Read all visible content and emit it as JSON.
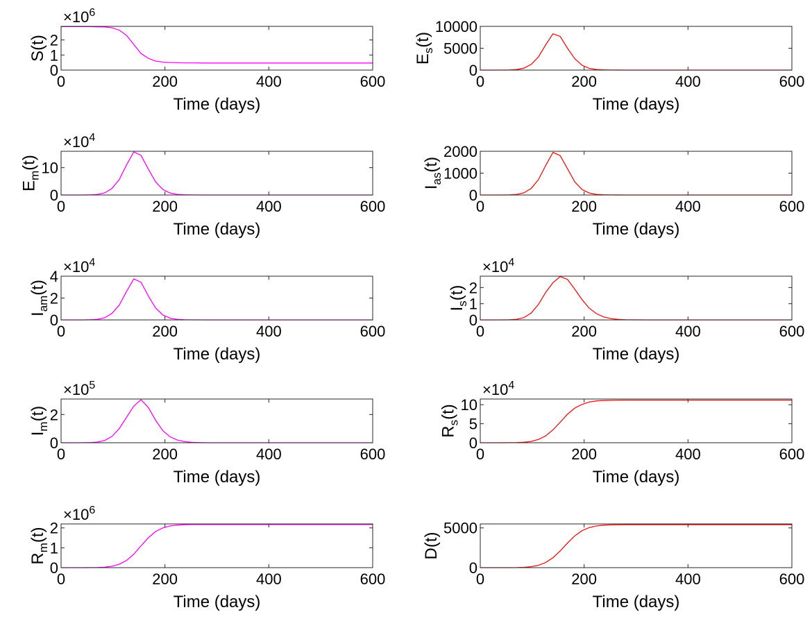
{
  "chart_data": [
    {
      "type": "line",
      "ylabel": "S(t)",
      "ylabel_base": "S",
      "ylabel_sub": "",
      "xlabel": "Time (days)",
      "exponent": "6",
      "xlim": [
        0,
        600
      ],
      "ylim": [
        0,
        2.9
      ],
      "xticks": [
        0,
        200,
        400,
        600
      ],
      "yticks": [
        0,
        1,
        2
      ],
      "color": "#ff00ff",
      "x": [
        0,
        14,
        28,
        42,
        56,
        70,
        84,
        98,
        112,
        126,
        140,
        154,
        168,
        182,
        196,
        210,
        224,
        238,
        252,
        280,
        320,
        400,
        500,
        600
      ],
      "y": [
        2.88,
        2.88,
        2.88,
        2.88,
        2.88,
        2.87,
        2.86,
        2.81,
        2.65,
        2.3,
        1.7,
        1.1,
        0.78,
        0.6,
        0.53,
        0.5,
        0.49,
        0.48,
        0.48,
        0.47,
        0.47,
        0.47,
        0.47,
        0.47
      ]
    },
    {
      "type": "line",
      "ylabel": "Es(t)",
      "ylabel_base": "E",
      "ylabel_sub": "s",
      "xlabel": "Time (days)",
      "exponent": "",
      "xlim": [
        0,
        600
      ],
      "ylim": [
        0,
        10000
      ],
      "xticks": [
        0,
        200,
        400,
        600
      ],
      "yticks": [
        0,
        5000,
        10000
      ],
      "color": "#ee1111",
      "x": [
        0,
        14,
        28,
        42,
        56,
        70,
        84,
        98,
        112,
        126,
        140,
        154,
        168,
        182,
        196,
        210,
        224,
        238,
        252,
        280,
        320,
        400,
        500,
        600
      ],
      "y": [
        0,
        0,
        0,
        5,
        30,
        120,
        450,
        1300,
        3000,
        5800,
        8300,
        7700,
        5000,
        2600,
        1100,
        400,
        130,
        40,
        10,
        0,
        0,
        0,
        0,
        0
      ]
    },
    {
      "type": "line",
      "ylabel": "Em(t)",
      "ylabel_base": "E",
      "ylabel_sub": "m",
      "xlabel": "Time (days)",
      "exponent": "4",
      "xlim": [
        0,
        600
      ],
      "ylim": [
        0,
        16
      ],
      "xticks": [
        0,
        200,
        400,
        600
      ],
      "yticks": [
        0,
        10
      ],
      "color": "#ff00ff",
      "x": [
        0,
        14,
        28,
        42,
        56,
        70,
        84,
        98,
        112,
        126,
        140,
        154,
        168,
        182,
        196,
        210,
        224,
        238,
        252,
        280,
        320,
        400,
        500,
        600
      ],
      "y": [
        0,
        0,
        0,
        0.01,
        0.06,
        0.22,
        0.8,
        2.4,
        5.6,
        11,
        15.8,
        14.5,
        9.5,
        4.8,
        2.0,
        0.7,
        0.22,
        0.07,
        0.02,
        0,
        0,
        0,
        0,
        0
      ]
    },
    {
      "type": "line",
      "ylabel": "Ias(t)",
      "ylabel_base": "I",
      "ylabel_sub": "as",
      "xlabel": "Time (days)",
      "exponent": "",
      "xlim": [
        0,
        600
      ],
      "ylim": [
        0,
        2000
      ],
      "xticks": [
        0,
        200,
        400,
        600
      ],
      "yticks": [
        0,
        1000,
        2000
      ],
      "color": "#ee1111",
      "x": [
        0,
        14,
        28,
        42,
        56,
        70,
        84,
        98,
        112,
        126,
        140,
        154,
        168,
        182,
        196,
        210,
        224,
        238,
        252,
        280,
        320,
        400,
        500,
        600
      ],
      "y": [
        0,
        0,
        0,
        1,
        7,
        28,
        100,
        300,
        700,
        1350,
        1950,
        1800,
        1200,
        600,
        250,
        90,
        30,
        9,
        2,
        0,
        0,
        0,
        0,
        0
      ]
    },
    {
      "type": "line",
      "ylabel": "Iam(t)",
      "ylabel_base": "I",
      "ylabel_sub": "am",
      "xlabel": "Time (days)",
      "exponent": "4",
      "xlim": [
        0,
        600
      ],
      "ylim": [
        0,
        4
      ],
      "xticks": [
        0,
        200,
        400,
        600
      ],
      "yticks": [
        0,
        2,
        4
      ],
      "color": "#ff00ff",
      "x": [
        0,
        14,
        28,
        42,
        56,
        70,
        84,
        98,
        112,
        126,
        140,
        154,
        168,
        182,
        196,
        210,
        224,
        238,
        252,
        280,
        320,
        400,
        500,
        600
      ],
      "y": [
        0,
        0,
        0,
        0.003,
        0.015,
        0.06,
        0.2,
        0.6,
        1.35,
        2.6,
        3.75,
        3.45,
        2.2,
        1.1,
        0.45,
        0.16,
        0.05,
        0.015,
        0.004,
        0,
        0,
        0,
        0,
        0
      ]
    },
    {
      "type": "line",
      "ylabel": "Is(t)",
      "ylabel_base": "I",
      "ylabel_sub": "s",
      "xlabel": "Time (days)",
      "exponent": "4",
      "xlim": [
        0,
        600
      ],
      "ylim": [
        0,
        2.7
      ],
      "xticks": [
        0,
        200,
        400,
        600
      ],
      "yticks": [
        0,
        1,
        2
      ],
      "color": "#ee1111",
      "x": [
        0,
        14,
        28,
        42,
        56,
        70,
        84,
        98,
        112,
        126,
        140,
        154,
        168,
        182,
        196,
        210,
        224,
        238,
        252,
        266,
        280,
        320,
        400,
        500,
        600
      ],
      "y": [
        0,
        0,
        0,
        0.002,
        0.01,
        0.04,
        0.14,
        0.42,
        0.95,
        1.7,
        2.3,
        2.68,
        2.5,
        1.9,
        1.25,
        0.72,
        0.38,
        0.18,
        0.08,
        0.03,
        0.01,
        0,
        0,
        0,
        0
      ]
    },
    {
      "type": "line",
      "ylabel": "Im(t)",
      "ylabel_base": "I",
      "ylabel_sub": "m",
      "xlabel": "Time (days)",
      "exponent": "5",
      "xlim": [
        0,
        600
      ],
      "ylim": [
        0,
        3.1
      ],
      "xticks": [
        0,
        200,
        400,
        600
      ],
      "yticks": [
        0,
        2
      ],
      "color": "#ff00ff",
      "x": [
        0,
        14,
        28,
        42,
        56,
        70,
        84,
        98,
        112,
        126,
        140,
        154,
        168,
        182,
        196,
        210,
        224,
        238,
        252,
        266,
        280,
        320,
        400,
        500,
        600
      ],
      "y": [
        0,
        0,
        0,
        0.003,
        0.012,
        0.05,
        0.16,
        0.45,
        1.0,
        1.8,
        2.6,
        3.05,
        2.5,
        1.6,
        0.85,
        0.42,
        0.19,
        0.08,
        0.03,
        0.01,
        0,
        0,
        0,
        0,
        0
      ]
    },
    {
      "type": "line",
      "ylabel": "Rs(t)",
      "ylabel_base": "R",
      "ylabel_sub": "s",
      "xlabel": "Time (days)",
      "exponent": "4",
      "xlim": [
        0,
        600
      ],
      "ylim": [
        0,
        11.5
      ],
      "xticks": [
        0,
        200,
        400,
        600
      ],
      "yticks": [
        0,
        5,
        10
      ],
      "color": "#ee1111",
      "x": [
        0,
        14,
        28,
        42,
        56,
        70,
        84,
        98,
        112,
        126,
        140,
        154,
        168,
        182,
        196,
        210,
        224,
        238,
        252,
        280,
        320,
        400,
        500,
        600
      ],
      "y": [
        0,
        0,
        0,
        0,
        0.01,
        0.04,
        0.12,
        0.35,
        0.85,
        1.8,
        3.4,
        5.4,
        7.5,
        9.1,
        10.1,
        10.7,
        11.0,
        11.1,
        11.15,
        11.2,
        11.2,
        11.2,
        11.2,
        11.2
      ]
    },
    {
      "type": "line",
      "ylabel": "Rm(t)",
      "ylabel_base": "R",
      "ylabel_sub": "m",
      "xlabel": "Time (days)",
      "exponent": "6",
      "xlim": [
        0,
        600
      ],
      "ylim": [
        0,
        2.2
      ],
      "xticks": [
        0,
        200,
        400,
        600
      ],
      "yticks": [
        0,
        1,
        2
      ],
      "color": "#ff00ff",
      "x": [
        0,
        14,
        28,
        42,
        56,
        70,
        84,
        98,
        112,
        126,
        140,
        154,
        168,
        182,
        196,
        210,
        224,
        238,
        252,
        280,
        320,
        400,
        500,
        600
      ],
      "y": [
        0,
        0,
        0,
        0,
        0.002,
        0.008,
        0.025,
        0.07,
        0.17,
        0.36,
        0.68,
        1.1,
        1.5,
        1.82,
        2.0,
        2.1,
        2.14,
        2.16,
        2.17,
        2.17,
        2.17,
        2.17,
        2.17,
        2.17
      ]
    },
    {
      "type": "line",
      "ylabel": "D(t)",
      "ylabel_base": "D",
      "ylabel_sub": "",
      "xlabel": "Time (days)",
      "exponent": "",
      "xlim": [
        0,
        600
      ],
      "ylim": [
        0,
        5500
      ],
      "xticks": [
        0,
        200,
        400,
        600
      ],
      "yticks": [
        0,
        5000
      ],
      "color": "#ee1111",
      "x": [
        0,
        14,
        28,
        42,
        56,
        70,
        84,
        98,
        112,
        126,
        140,
        154,
        168,
        182,
        196,
        210,
        224,
        238,
        252,
        280,
        320,
        400,
        500,
        600
      ],
      "y": [
        0,
        0,
        0,
        0,
        3,
        12,
        40,
        120,
        300,
        650,
        1250,
        2100,
        3100,
        4000,
        4650,
        5050,
        5250,
        5340,
        5380,
        5400,
        5400,
        5400,
        5400,
        5400
      ]
    }
  ]
}
